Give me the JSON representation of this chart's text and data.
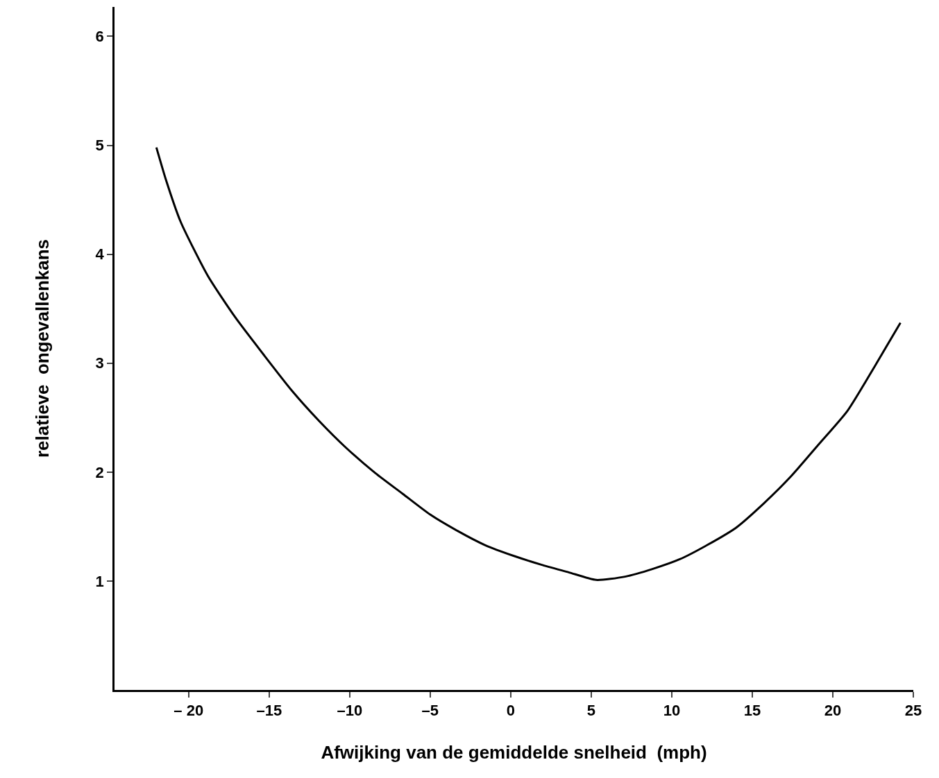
{
  "chart_data": {
    "type": "line",
    "xlabel": "Afwijking van de gemiddelde snelheid  (mph)",
    "ylabel": "relatieve  ongevallenkans",
    "x": [
      -22.0,
      -21.4,
      -20.5,
      -18.8,
      -17.1,
      -15.3,
      -13.6,
      -11.9,
      -10.2,
      -8.4,
      -6.7,
      -5.0,
      -3.3,
      -1.6,
      0.2,
      1.9,
      3.6,
      5.3,
      7.1,
      8.8,
      10.5,
      12.2,
      14.0,
      15.7,
      17.4,
      19.1,
      20.9,
      22.6,
      24.2
    ],
    "series": [
      {
        "color": "#000000",
        "values": [
          4.98,
          4.68,
          4.3,
          3.8,
          3.42,
          3.07,
          2.75,
          2.47,
          2.22,
          1.99,
          1.8,
          1.61,
          1.46,
          1.33,
          1.23,
          1.15,
          1.08,
          1.01,
          1.04,
          1.11,
          1.2,
          1.33,
          1.49,
          1.71,
          1.96,
          2.25,
          2.56,
          2.97,
          3.37
        ]
      }
    ],
    "xlim": [
      -24.6,
      25
    ],
    "ylim": [
      0,
      6.27
    ],
    "xticks": [
      {
        "value": -20,
        "label": "– 20"
      },
      {
        "value": -15,
        "label": "–15"
      },
      {
        "value": -10,
        "label": "–10"
      },
      {
        "value": -5,
        "label": "–5"
      },
      0,
      5,
      10,
      15,
      20,
      25
    ],
    "yticks": [
      1,
      2,
      3,
      4,
      5,
      6
    ],
    "grid": false,
    "marker": "none",
    "line_style": "solid"
  }
}
